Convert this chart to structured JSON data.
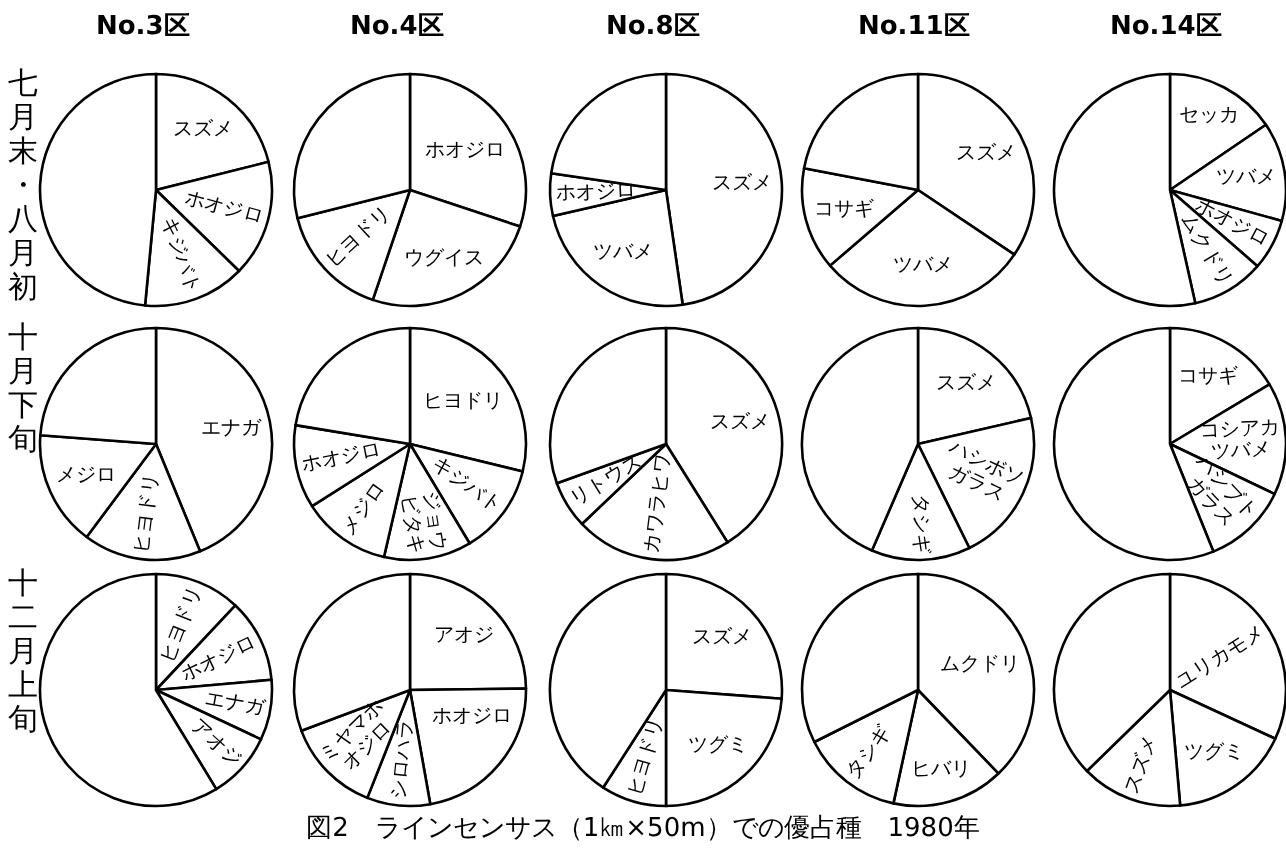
{
  "chart_data": [
    {
      "type": "pie",
      "title": "No.3区",
      "ylabel": "七月末・八月初",
      "categories": [
        "スズメ",
        "ホオジロ",
        "キジバト",
        null
      ],
      "values": [
        21.1,
        16.2,
        14.2,
        48.5
      ],
      "colors": [
        "#ffffff",
        "#ffffff",
        "#ffffff",
        "#ffffff"
      ]
    },
    {
      "type": "pie",
      "title": "No.4区",
      "categories": [
        "ホオジロ",
        "ウグイス",
        "ヒヨドリ",
        null
      ],
      "values": [
        30.1,
        25.1,
        15.9,
        28.9
      ],
      "colors": [
        "#ffffff",
        "#ffffff",
        "#ffffff",
        "#ffffff"
      ]
    },
    {
      "type": "pie",
      "title": "No.8区",
      "categories": [
        "スズメ",
        "ツバメ",
        "ホオジロ",
        null
      ],
      "values": [
        47.7,
        23.7,
        5.9,
        22.7
      ],
      "colors": [
        "#ffffff",
        "#ffffff",
        "#ffffff",
        "#ffffff"
      ]
    },
    {
      "type": "pie",
      "title": "No.11区",
      "categories": [
        "スズメ",
        "ツバメ",
        "コサギ",
        null
      ],
      "values": [
        34.4,
        29.3,
        14.3,
        22.0
      ],
      "colors": [
        "#ffffff",
        "#ffffff",
        "#ffffff",
        "#ffffff"
      ]
    },
    {
      "type": "pie",
      "title": "No.14区",
      "categories": [
        "セッカ",
        "ツバメ",
        "ホオジロ",
        "ムクドリ",
        null
      ],
      "values": [
        15.5,
        13.8,
        7.1,
        10.1,
        53.5
      ],
      "colors": [
        "#ffffff",
        "#ffffff",
        "#ffffff",
        "#ffffff",
        "#ffffff"
      ]
    },
    {
      "type": "pie",
      "ylabel": "十月下旬",
      "categories": [
        "エナガ",
        "ヒヨドリ",
        "メジロ",
        null
      ],
      "values": [
        43.8,
        16.4,
        16.0,
        23.8
      ],
      "colors": [
        "#ffffff",
        "#ffffff",
        "#ffffff",
        "#ffffff"
      ]
    },
    {
      "type": "pie",
      "categories": [
        "ヒヨドリ",
        "キジバト",
        "ジョウビタキ",
        "メジロ",
        "ホオジロ",
        null
      ],
      "values": [
        28.8,
        12.6,
        12.2,
        12.4,
        11.6,
        22.4
      ],
      "colors": [
        "#ffffff",
        "#ffffff",
        "#ffffff",
        "#ffffff",
        "#ffffff",
        "#ffffff"
      ]
    },
    {
      "type": "pie",
      "categories": [
        "スズメ",
        "カワラヒワ",
        "リトウス",
        null
      ],
      "values": [
        41.1,
        21.8,
        6.6,
        30.5
      ],
      "colors": [
        "#ffffff",
        "#ffffff",
        "#ffffff",
        "#ffffff"
      ]
    },
    {
      "type": "pie",
      "categories": [
        "スズメ",
        "ハシボソガラス",
        "タシギ",
        null
      ],
      "values": [
        21.4,
        21.3,
        13.8,
        43.5
      ],
      "colors": [
        "#ffffff",
        "#ffffff",
        "#ffffff",
        "#ffffff"
      ]
    },
    {
      "type": "pie",
      "categories": [
        "コサギ",
        "コシアカツバメ",
        "ハシブトガラス",
        null
      ],
      "values": [
        16.4,
        15.7,
        11.8,
        56.1
      ],
      "colors": [
        "#ffffff",
        "#ffffff",
        "#ffffff",
        "#ffffff"
      ]
    },
    {
      "type": "pie",
      "ylabel": "十二月上旬",
      "categories": [
        "ヒヨドリ",
        "ホオジロ",
        "エナガ",
        "アオジ",
        null
      ],
      "values": [
        12.0,
        11.6,
        8.4,
        9.3,
        58.7
      ],
      "colors": [
        "#ffffff",
        "#ffffff",
        "#ffffff",
        "#ffffff",
        "#ffffff"
      ]
    },
    {
      "type": "pie",
      "categories": [
        "アオジ",
        "ホオジロ",
        "シロハラ",
        "ミヤマホオジロ",
        null
      ],
      "values": [
        24.8,
        22.4,
        8.8,
        13.3,
        30.7
      ],
      "colors": [
        "#ffffff",
        "#ffffff",
        "#ffffff",
        "#ffffff",
        "#ffffff"
      ]
    },
    {
      "type": "pie",
      "categories": [
        "スズメ",
        "ツグミ",
        "ヒヨドリ",
        null
      ],
      "values": [
        26.2,
        23.8,
        9.1,
        40.9
      ],
      "colors": [
        "#ffffff",
        "#ffffff",
        "#ffffff",
        "#ffffff"
      ]
    },
    {
      "type": "pie",
      "categories": [
        "ムクドリ",
        "ヒバリ",
        "タシギ",
        null
      ],
      "values": [
        37.8,
        15.6,
        14.2,
        32.4
      ],
      "colors": [
        "#ffffff",
        "#ffffff",
        "#ffffff",
        "#ffffff"
      ]
    },
    {
      "type": "pie",
      "categories": [
        "ユリカモメ",
        "ツグミ",
        "スズメ",
        null
      ],
      "values": [
        31.9,
        16.7,
        14.1,
        37.3
      ],
      "colors": [
        "#ffffff",
        "#ffffff",
        "#ffffff",
        "#ffffff"
      ],
      "annotations": [
        "図2　ラインセンサス（1㎞×50m）での優占種　1980年"
      ]
    }
  ]
}
